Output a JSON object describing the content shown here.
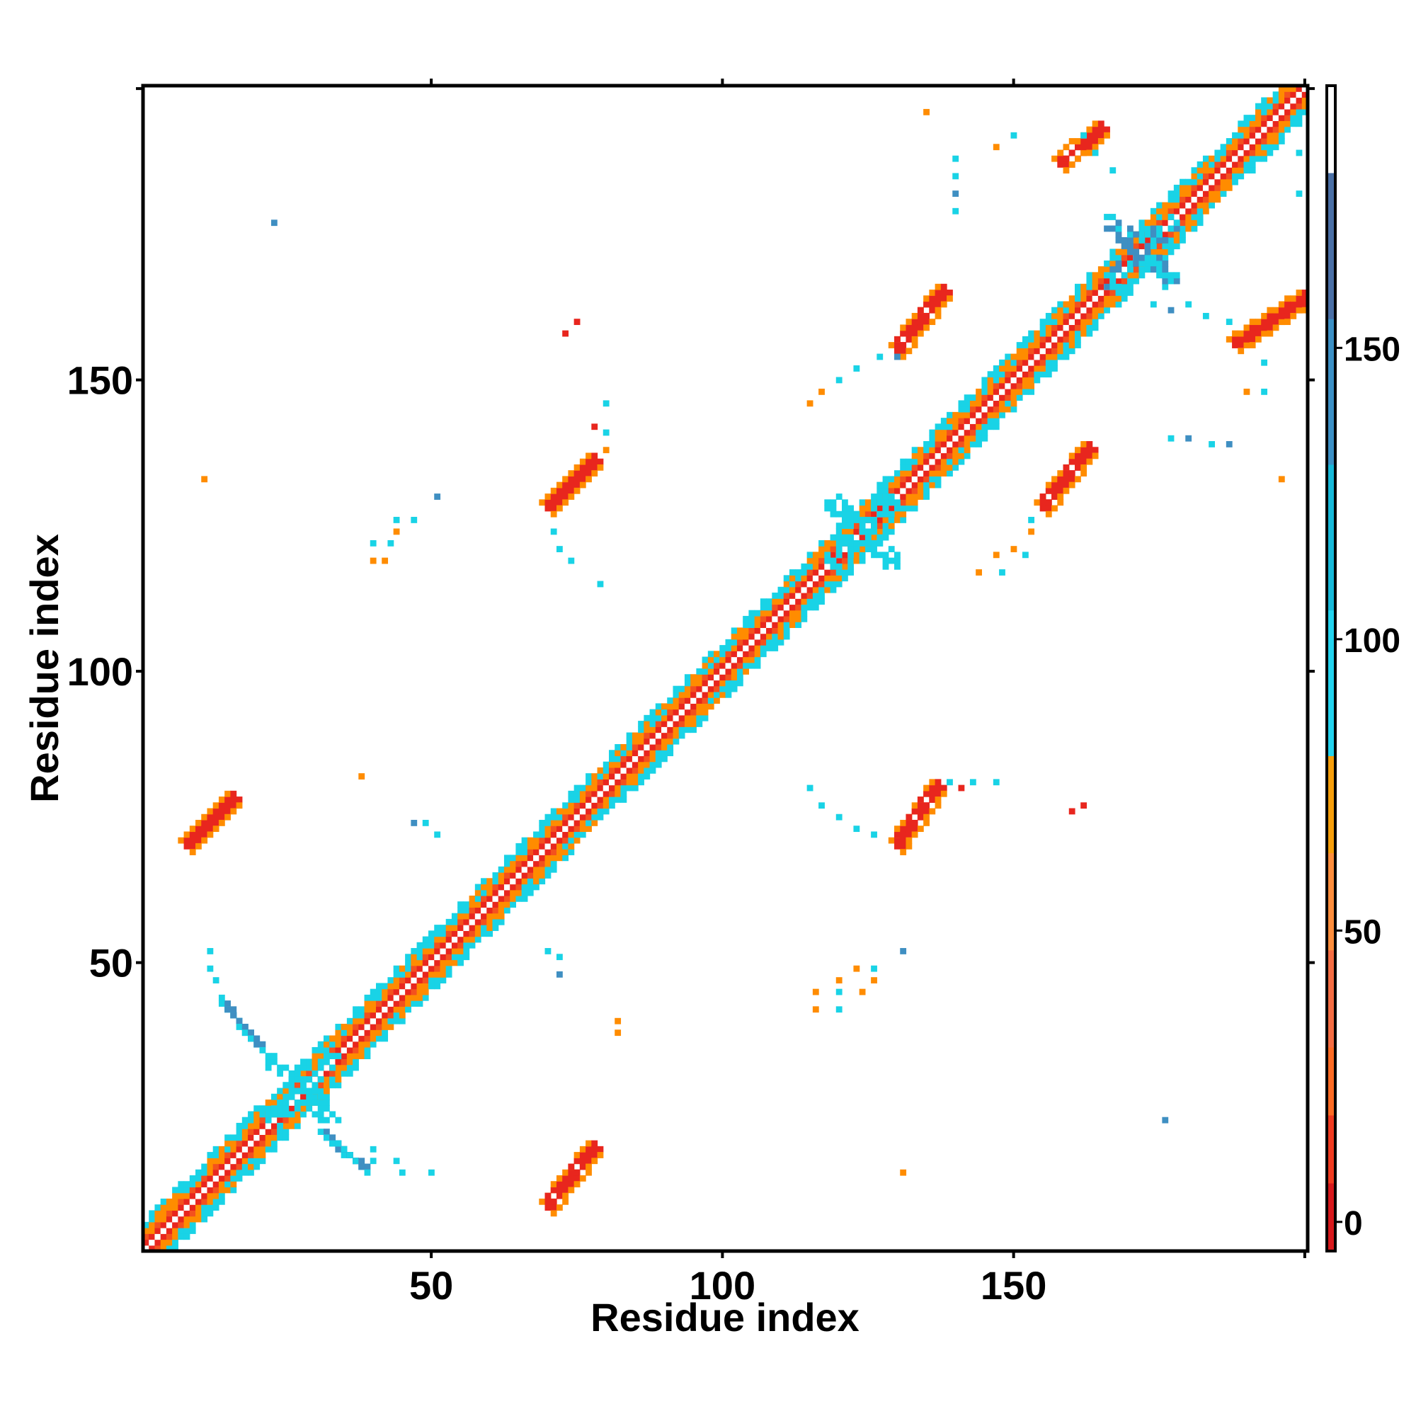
{
  "chart_data": {
    "type": "heatmap",
    "title": "",
    "xlabel": "Residue index",
    "ylabel": "Residue index",
    "xlim": [
      1,
      200
    ],
    "ylim": [
      1,
      200
    ],
    "x_ticks": [
      50,
      100,
      150
    ],
    "y_ticks": [
      50,
      100,
      150
    ],
    "colorbar": {
      "range": [
        -5,
        195
      ],
      "ticks": [
        0,
        50,
        100,
        150
      ],
      "bands": [
        {
          "from": -5,
          "to": 30,
          "color": "#e41a1c"
        },
        {
          "from": 30,
          "to": 80,
          "color": "#ff7f00"
        },
        {
          "from": 80,
          "to": 180,
          "color": "#00ced1"
        },
        {
          "from": 180,
          "to": 195,
          "color": "#ffffff"
        }
      ],
      "gradients": [
        {
          "from": -5,
          "to": 30,
          "colors": [
            "#d7191c",
            "#f03b20",
            "#fd6b24"
          ]
        },
        {
          "from": 30,
          "to": 80,
          "colors": [
            "#f46d43",
            "#fd8d3c",
            "#f59e0b"
          ]
        },
        {
          "from": 80,
          "to": 180,
          "colors": [
            "#22d3ee",
            "#16b8d8",
            "#3b8fc4",
            "#4a6fa5"
          ]
        }
      ]
    },
    "palette": {
      "red": "#e8261e",
      "orange_red": "#f4511e",
      "orange": "#ff8c00",
      "cyan": "#19d3e6",
      "steel_blue": "#3f8fc2",
      "diag": "#ffffff"
    },
    "diagonal_band_halfwidth": 5,
    "contact_patches": [
      {
        "x": [
          70,
          78
        ],
        "y": [
          8,
          18
        ],
        "color": "red",
        "dir": -1
      },
      {
        "x": [
          8,
          16
        ],
        "y": [
          70,
          78
        ],
        "color": "red",
        "dir": -1
      },
      {
        "x": [
          130,
          137
        ],
        "y": [
          70,
          80
        ],
        "color": "red",
        "dir": -1
      },
      {
        "x": [
          70,
          78
        ],
        "y": [
          128,
          136
        ],
        "color": "red",
        "dir": -1
      },
      {
        "x": [
          155,
          163
        ],
        "y": [
          128,
          138
        ],
        "color": "red",
        "dir": -1
      },
      {
        "x": [
          130,
          138
        ],
        "y": [
          155,
          165
        ],
        "color": "red",
        "dir": -1
      },
      {
        "x": [
          158,
          165
        ],
        "y": [
          187,
          193
        ],
        "color": "red",
        "dir": -1
      },
      {
        "x": [
          188,
          200
        ],
        "y": [
          156,
          164
        ],
        "color": "red",
        "dir": -1
      },
      {
        "x": [
          15,
          20
        ],
        "y": [
          36,
          42
        ],
        "color": "steel_blue",
        "dir": 1
      },
      {
        "x": [
          32,
          38
        ],
        "y": [
          15,
          20
        ],
        "color": "steel_blue",
        "dir": 1
      }
    ],
    "scatter_points": [
      {
        "x": 23,
        "y": 177,
        "c": "steel_blue"
      },
      {
        "x": 11,
        "y": 133,
        "c": "orange"
      },
      {
        "x": 75,
        "y": 160,
        "c": "red"
      },
      {
        "x": 73,
        "y": 158,
        "c": "red"
      },
      {
        "x": 80,
        "y": 146,
        "c": "cyan"
      },
      {
        "x": 78,
        "y": 142,
        "c": "red"
      },
      {
        "x": 80,
        "y": 141,
        "c": "cyan"
      },
      {
        "x": 80,
        "y": 138,
        "c": "orange"
      },
      {
        "x": 51,
        "y": 130,
        "c": "steel_blue"
      },
      {
        "x": 44,
        "y": 126,
        "c": "cyan"
      },
      {
        "x": 47,
        "y": 126,
        "c": "cyan"
      },
      {
        "x": 44,
        "y": 124,
        "c": "orange"
      },
      {
        "x": 40,
        "y": 122,
        "c": "cyan"
      },
      {
        "x": 43,
        "y": 122,
        "c": "cyan"
      },
      {
        "x": 40,
        "y": 119,
        "c": "orange"
      },
      {
        "x": 42,
        "y": 119,
        "c": "orange"
      },
      {
        "x": 71,
        "y": 124,
        "c": "cyan"
      },
      {
        "x": 72,
        "y": 121,
        "c": "cyan"
      },
      {
        "x": 74,
        "y": 119,
        "c": "cyan"
      },
      {
        "x": 79,
        "y": 115,
        "c": "cyan"
      },
      {
        "x": 38,
        "y": 82,
        "c": "orange"
      },
      {
        "x": 47,
        "y": 74,
        "c": "steel_blue"
      },
      {
        "x": 49,
        "y": 74,
        "c": "cyan"
      },
      {
        "x": 51,
        "y": 72,
        "c": "cyan"
      },
      {
        "x": 12,
        "y": 52,
        "c": "cyan"
      },
      {
        "x": 12,
        "y": 49,
        "c": "cyan"
      },
      {
        "x": 13,
        "y": 47,
        "c": "cyan"
      },
      {
        "x": 14,
        "y": 44,
        "c": "cyan"
      },
      {
        "x": 70,
        "y": 52,
        "c": "cyan"
      },
      {
        "x": 72,
        "y": 51,
        "c": "cyan"
      },
      {
        "x": 72,
        "y": 48,
        "c": "steel_blue"
      },
      {
        "x": 82,
        "y": 40,
        "c": "orange"
      },
      {
        "x": 82,
        "y": 38,
        "c": "orange"
      },
      {
        "x": 40,
        "y": 18,
        "c": "cyan"
      },
      {
        "x": 40,
        "y": 16,
        "c": "cyan"
      },
      {
        "x": 44,
        "y": 16,
        "c": "cyan"
      },
      {
        "x": 45,
        "y": 14,
        "c": "cyan"
      },
      {
        "x": 50,
        "y": 14,
        "c": "cyan"
      },
      {
        "x": 131,
        "y": 52,
        "c": "steel_blue"
      },
      {
        "x": 123,
        "y": 49,
        "c": "orange"
      },
      {
        "x": 126,
        "y": 49,
        "c": "cyan"
      },
      {
        "x": 120,
        "y": 47,
        "c": "orange"
      },
      {
        "x": 126,
        "y": 47,
        "c": "orange"
      },
      {
        "x": 116,
        "y": 45,
        "c": "orange"
      },
      {
        "x": 120,
        "y": 45,
        "c": "cyan"
      },
      {
        "x": 124,
        "y": 45,
        "c": "orange"
      },
      {
        "x": 116,
        "y": 42,
        "c": "orange"
      },
      {
        "x": 120,
        "y": 42,
        "c": "cyan"
      },
      {
        "x": 115,
        "y": 80,
        "c": "cyan"
      },
      {
        "x": 117,
        "y": 77,
        "c": "cyan"
      },
      {
        "x": 120,
        "y": 75,
        "c": "cyan"
      },
      {
        "x": 123,
        "y": 73,
        "c": "cyan"
      },
      {
        "x": 126,
        "y": 72,
        "c": "cyan"
      },
      {
        "x": 139,
        "y": 81,
        "c": "cyan"
      },
      {
        "x": 141,
        "y": 80,
        "c": "red"
      },
      {
        "x": 143,
        "y": 81,
        "c": "cyan"
      },
      {
        "x": 147,
        "y": 81,
        "c": "cyan"
      },
      {
        "x": 160,
        "y": 76,
        "c": "red"
      },
      {
        "x": 162,
        "y": 77,
        "c": "red"
      },
      {
        "x": 131,
        "y": 14,
        "c": "orange"
      },
      {
        "x": 176,
        "y": 23,
        "c": "steel_blue"
      },
      {
        "x": 115,
        "y": 146,
        "c": "orange"
      },
      {
        "x": 117,
        "y": 148,
        "c": "orange"
      },
      {
        "x": 120,
        "y": 150,
        "c": "cyan"
      },
      {
        "x": 123,
        "y": 152,
        "c": "cyan"
      },
      {
        "x": 127,
        "y": 154,
        "c": "cyan"
      },
      {
        "x": 130,
        "y": 154,
        "c": "steel_blue"
      },
      {
        "x": 153,
        "y": 126,
        "c": "cyan"
      },
      {
        "x": 153,
        "y": 124,
        "c": "orange"
      },
      {
        "x": 150,
        "y": 121,
        "c": "orange"
      },
      {
        "x": 152,
        "y": 120,
        "c": "cyan"
      },
      {
        "x": 147,
        "y": 120,
        "c": "orange"
      },
      {
        "x": 144,
        "y": 117,
        "c": "orange"
      },
      {
        "x": 148,
        "y": 117,
        "c": "cyan"
      },
      {
        "x": 140,
        "y": 188,
        "c": "cyan"
      },
      {
        "x": 140,
        "y": 185,
        "c": "cyan"
      },
      {
        "x": 140,
        "y": 182,
        "c": "steel_blue"
      },
      {
        "x": 140,
        "y": 179,
        "c": "cyan"
      },
      {
        "x": 150,
        "y": 192,
        "c": "cyan"
      },
      {
        "x": 147,
        "y": 190,
        "c": "orange"
      },
      {
        "x": 135,
        "y": 196,
        "c": "orange"
      },
      {
        "x": 162,
        "y": 192,
        "c": "cyan"
      },
      {
        "x": 164,
        "y": 189,
        "c": "cyan"
      },
      {
        "x": 167,
        "y": 186,
        "c": "cyan"
      },
      {
        "x": 174,
        "y": 163,
        "c": "cyan"
      },
      {
        "x": 177,
        "y": 162,
        "c": "steel_blue"
      },
      {
        "x": 180,
        "y": 163,
        "c": "cyan"
      },
      {
        "x": 183,
        "y": 161,
        "c": "cyan"
      },
      {
        "x": 187,
        "y": 160,
        "c": "cyan"
      },
      {
        "x": 177,
        "y": 140,
        "c": "cyan"
      },
      {
        "x": 180,
        "y": 140,
        "c": "steel_blue"
      },
      {
        "x": 184,
        "y": 139,
        "c": "cyan"
      },
      {
        "x": 187,
        "y": 139,
        "c": "steel_blue"
      },
      {
        "x": 193,
        "y": 153,
        "c": "cyan"
      },
      {
        "x": 190,
        "y": 148,
        "c": "orange"
      },
      {
        "x": 193,
        "y": 148,
        "c": "cyan"
      },
      {
        "x": 196,
        "y": 133,
        "c": "orange"
      },
      {
        "x": 199,
        "y": 189,
        "c": "cyan"
      },
      {
        "x": 199,
        "y": 182,
        "c": "cyan"
      }
    ],
    "hotspots": [
      {
        "x": 172,
        "y": 172,
        "c": "steel_blue"
      },
      {
        "x": 124,
        "y": 124,
        "c": "cyan"
      },
      {
        "x": 28,
        "y": 28,
        "c": "cyan"
      }
    ]
  }
}
